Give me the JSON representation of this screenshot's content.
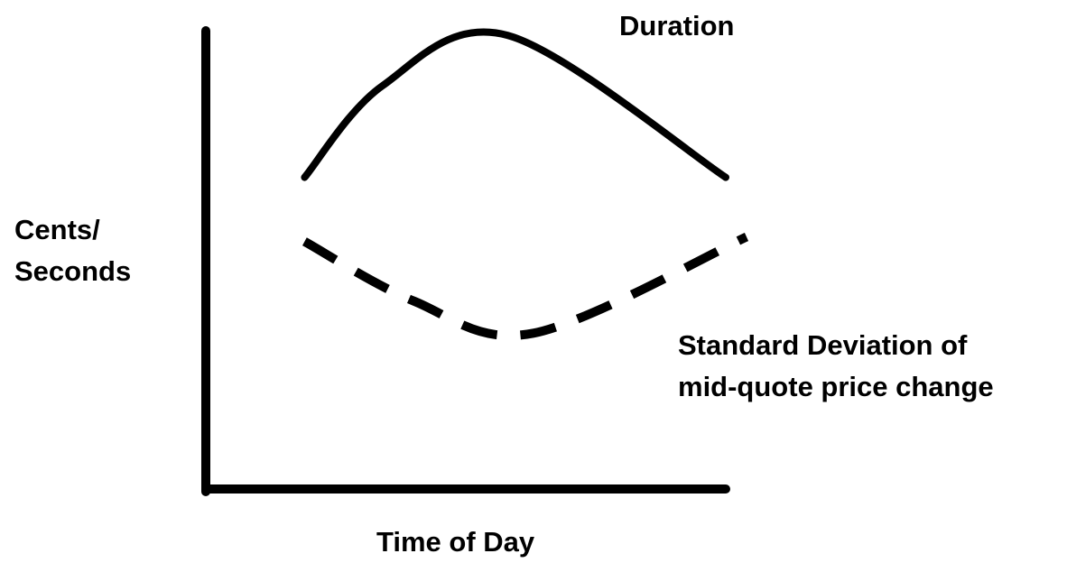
{
  "chart_data": {
    "type": "line",
    "xlabel": "Time of Day",
    "ylabel": [
      "Cents/",
      "Seconds"
    ],
    "series": [
      {
        "name": "Duration",
        "style": "solid",
        "color": "#000000",
        "x": [
          0.19,
          0.34,
          0.58,
          1.0
        ],
        "y": [
          0.68,
          0.88,
          0.99,
          0.68
        ]
      },
      {
        "name": [
          "Standard Deviation of",
          "mid-quote price change"
        ],
        "style": "dashed",
        "color": "#000000",
        "x": [
          0.19,
          0.4,
          0.63,
          1.04
        ],
        "y": [
          0.54,
          0.41,
          0.34,
          0.55
        ]
      }
    ],
    "xlim": [
      0,
      1
    ],
    "ylim": [
      0,
      1
    ],
    "grid": false,
    "legend": "none"
  }
}
